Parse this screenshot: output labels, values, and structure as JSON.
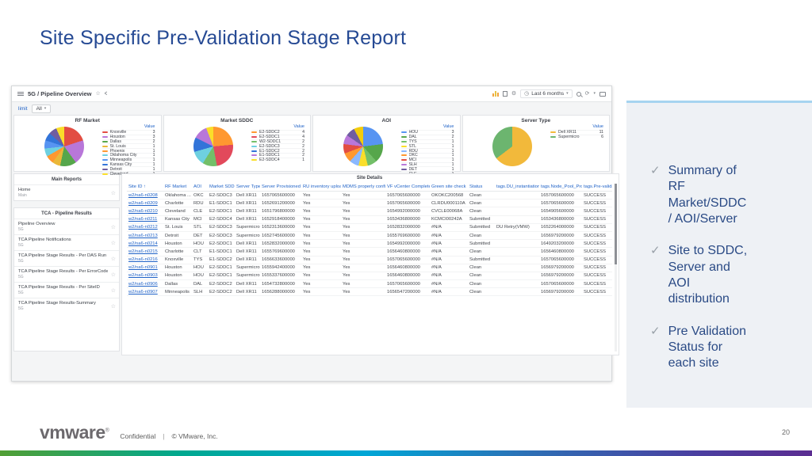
{
  "slide": {
    "title": "Site Specific Pre-Validation Stage Report",
    "page_number": "20",
    "footer": {
      "brand": "vmware",
      "registered": "®",
      "confidential": "Confidential",
      "divider": "|",
      "copyright": "© VMware, Inc."
    },
    "colors": {
      "title_blue": "#264a94",
      "takeaway_text": "#2a4a85",
      "takeaway_panel_bg": "#eef1f5",
      "takeaway_panel_border": "#a6d4f0",
      "link_blue": "#1f62c7",
      "bottom_gradient": [
        "#529f35",
        "#00a88e",
        "#00a6d6",
        "#2f6db4",
        "#4b3fa0",
        "#5b2d91"
      ]
    }
  },
  "takeaways": {
    "items": [
      "Summary of RF Market/SDDC / AOI/Server",
      "Site to SDDC, Server and AOI distribution",
      "Pre Validation Status for each site"
    ]
  },
  "dashboard": {
    "breadcrumb": "5G / Pipeline Overview",
    "time_range": "Last 6 months",
    "filters": {
      "limit_label": "limit",
      "all_label": "All"
    },
    "table_title": "Site Details",
    "sidebar": {
      "sections": [
        {
          "header": "Main Reports",
          "items": [
            {
              "title": "Home",
              "subtitle": "Main"
            }
          ]
        },
        {
          "header": "TCA - Pipeline Results",
          "items": [
            {
              "title": "Pipeline Overview",
              "subtitle": "5G"
            },
            {
              "title": "TCA Pipeline Notifications",
              "subtitle": "5G"
            },
            {
              "title": "TCA Pipeline Stage Results - Per DAS Run ID",
              "subtitle": "5G"
            },
            {
              "title": "TCA Pipeline Stage Results - Per ErrorCodes",
              "subtitle": "5G"
            },
            {
              "title": "TCA Pipeline Stage Results - Per SiteID",
              "subtitle": "5G"
            },
            {
              "title": "TCA Pipeline Stage Results-Summary",
              "subtitle": "5G"
            }
          ]
        }
      ]
    }
  },
  "chart_data": [
    {
      "type": "pie",
      "title": "RF Market",
      "legend_value_header": "Value",
      "legend_position": "right",
      "labels": [
        "Knoxville",
        "Houston",
        "Dallas",
        "St. Louis",
        "Phoenix",
        "Oklahoma City",
        "Minneapolis",
        "Kansas City",
        "Detroit",
        "Cleveland"
      ],
      "values": [
        3,
        3,
        2,
        1,
        1,
        1,
        1,
        1,
        1,
        1
      ],
      "colors": [
        "#E24D42",
        "#B877D9",
        "#56A64B",
        "#EAB839",
        "#FF9830",
        "#6ED0E0",
        "#5794F2",
        "#3274D9",
        "#705DA0",
        "#FADE2A"
      ]
    },
    {
      "type": "pie",
      "title": "Market SDDC",
      "legend_value_header": "Value",
      "legend_position": "right",
      "labels": [
        "E2-SDDC2",
        "E2-SDDC1",
        "W2-SDDC1",
        "E2-SDDC3",
        "E1-SDDC2",
        "E1-SDDC1",
        "E2-SDDC4"
      ],
      "values": [
        4,
        4,
        2,
        2,
        2,
        2,
        1
      ],
      "colors": [
        "#FF9830",
        "#E2495B",
        "#73BF69",
        "#6ED0E0",
        "#3274D9",
        "#B877D9",
        "#FADE2A"
      ]
    },
    {
      "type": "pie",
      "title": "AOI",
      "legend_value_header": "Value",
      "legend_position": "right",
      "labels": [
        "HOU",
        "DAL",
        "TYS",
        "STL",
        "RDU",
        "OKC",
        "MCI",
        "SLH",
        "DET",
        "CLE"
      ],
      "values": [
        3,
        2,
        1,
        1,
        1,
        1,
        1,
        1,
        1,
        1
      ],
      "colors": [
        "#5794F2",
        "#56A64B",
        "#73BF69",
        "#FADE2A",
        "#8AB8FF",
        "#FF9830",
        "#E24D42",
        "#B877D9",
        "#705DA0",
        "#F2CC0C"
      ]
    },
    {
      "type": "pie",
      "title": "Server Type",
      "legend_value_header": "Value",
      "legend_position": "right",
      "labels": [
        "Dell XR11",
        "Supermicro"
      ],
      "values": [
        11,
        6
      ],
      "colors": [
        "#F2B93B",
        "#6CB56F"
      ]
    },
    {
      "type": "table",
      "title": "Site Details",
      "columns": [
        "Site ID ↑",
        "RF Market",
        "AOI",
        "Market SDDC",
        "Server Type",
        "Server Provisioned",
        "RU inventory uploaded",
        "MDMS properly configured",
        "VF vCenter Completed Date",
        "Green site check",
        "Status",
        "tags.DU_instantiation_complet",
        "tags.Node_Pool_Provisioning_",
        "tags.Pre-validation_status"
      ],
      "rows": [
        [
          "w2/na6-n0208",
          "Oklahoma ...",
          "OKC",
          "E2-SDDC3",
          "Dell XR11",
          "1657065600000",
          "Yes",
          "Yes",
          "1657065600000",
          "OKOKC200568",
          "Clean",
          "",
          "1657065600000",
          "SUCCESS"
        ],
        [
          "w2/na6-n0209",
          "Charlotte",
          "RDU",
          "E1-SDDC1",
          "Dell XR11",
          "1652691200000",
          "Yes",
          "Yes",
          "1657065600000",
          "CLRDU000110A",
          "Clean",
          "",
          "1657065600000",
          "SUCCESS"
        ],
        [
          "w2/na6-n0210",
          "Cleveland",
          "CLE",
          "E2-SDDC1",
          "Dell XR11",
          "1651796800000",
          "Yes",
          "Yes",
          "1654992000000",
          "CVCLE00068A",
          "Clean",
          "",
          "1654905600000",
          "SUCCESS"
        ],
        [
          "w2/na6-n0211",
          "Kansas City",
          "MCI",
          "E2-SDDC4",
          "Dell XR11",
          "1652918400000",
          "Yes",
          "Yes",
          "1653436800000",
          "KCMCI00242A",
          "Submitted",
          "",
          "1653436800000",
          "SUCCESS"
        ],
        [
          "w2/na6-n0212",
          "St. Louis",
          "STL",
          "E2-SDDC3",
          "Supermicro",
          "1652313600000",
          "Yes",
          "Yes",
          "1652832000000",
          "#N/A",
          "Submitted",
          "DU Retry(VMW)",
          "1652264000000",
          "SUCCESS"
        ],
        [
          "w2/na6-n0213",
          "Detroit",
          "DET",
          "E2-SDDC3",
          "Supermicro",
          "1652745600000",
          "Yes",
          "Yes",
          "1655769600000",
          "#N/A",
          "Clean",
          "",
          "1656979200000",
          "SUCCESS"
        ],
        [
          "w2/na6-n0214",
          "Houston",
          "HOU",
          "E2-SDDC1",
          "Dell XR11",
          "1652832000000",
          "Yes",
          "Yes",
          "1654992000000",
          "#N/A",
          "Submitted",
          "",
          "1649203200000",
          "SUCCESS"
        ],
        [
          "w2/na6-n0215",
          "Charlotte",
          "CLT",
          "E1-SDDC1",
          "Dell XR11",
          "1655769600000",
          "Yes",
          "Yes",
          "1656460800000",
          "#N/A",
          "Clean",
          "",
          "1656460800000",
          "SUCCESS"
        ],
        [
          "w2/na6-n0216",
          "Knoxville",
          "TYS",
          "E1-SDDC2",
          "Dell XR11",
          "1656633600000",
          "Yes",
          "Yes",
          "1657065600000",
          "#N/A",
          "Submitted",
          "",
          "1657065600000",
          "SUCCESS"
        ],
        [
          "w2/na6-n0901",
          "Houston",
          "HOU",
          "E2-SDDC1",
          "Supermicro",
          "1655942400000",
          "Yes",
          "Yes",
          "1656460800000",
          "#N/A",
          "Clean",
          "",
          "1656979200000",
          "SUCCESS"
        ],
        [
          "w2/na6-n0903",
          "Houston",
          "HOU",
          "E2-SDDC1",
          "Supermicro",
          "1655337600000",
          "Yes",
          "Yes",
          "1656460800000",
          "#N/A",
          "Clean",
          "",
          "1656979200000",
          "SUCCESS"
        ],
        [
          "w2/na6-n0906",
          "Dallas",
          "DAL",
          "E2-SDDC2",
          "Dell XR11",
          "1654732800000",
          "Yes",
          "Yes",
          "1657065600000",
          "#N/A",
          "Clean",
          "",
          "1657065600000",
          "SUCCESS"
        ],
        [
          "w2/na6-n0907",
          "Minneapolis",
          "SLH",
          "E2-SDDC2",
          "Dell XR11",
          "1656288000000",
          "Yes",
          "Yes",
          "1656547200000",
          "#N/A",
          "Clean",
          "",
          "1656979200000",
          "SUCCESS"
        ]
      ]
    }
  ]
}
